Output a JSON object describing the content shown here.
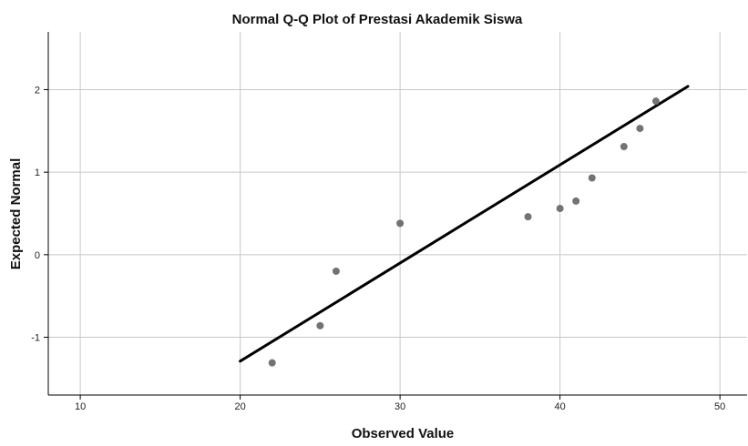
{
  "chart_data": {
    "type": "scatter",
    "title": "Normal Q-Q Plot of Prestasi Akademik Siswa",
    "xlabel": "Observed Value",
    "ylabel": "Expected Normal",
    "xlim": [
      8,
      51.7
    ],
    "ylim": [
      -1.7,
      2.7
    ],
    "x_ticks": [
      10,
      20,
      30,
      40,
      50
    ],
    "y_ticks": [
      -1,
      0,
      1,
      2
    ],
    "x_tick_labels": [
      "10",
      "20",
      "30",
      "40",
      "50"
    ],
    "y_tick_labels": [
      "-1",
      "0",
      "1",
      "2"
    ],
    "grid": true,
    "points": [
      {
        "x": 22,
        "y": -1.31
      },
      {
        "x": 25,
        "y": -0.86
      },
      {
        "x": 26,
        "y": -0.2
      },
      {
        "x": 30,
        "y": 0.38
      },
      {
        "x": 38,
        "y": 0.46
      },
      {
        "x": 40,
        "y": 0.56
      },
      {
        "x": 41,
        "y": 0.65
      },
      {
        "x": 42,
        "y": 0.93
      },
      {
        "x": 44,
        "y": 1.31
      },
      {
        "x": 45,
        "y": 1.53
      },
      {
        "x": 46,
        "y": 1.86
      }
    ],
    "reference_line": {
      "x": [
        20,
        48
      ],
      "y": [
        -1.29,
        2.04
      ]
    },
    "colors": {
      "points": "#737373",
      "line": "#000000",
      "grid": "#c8c8c8",
      "axes": "#000000"
    }
  }
}
